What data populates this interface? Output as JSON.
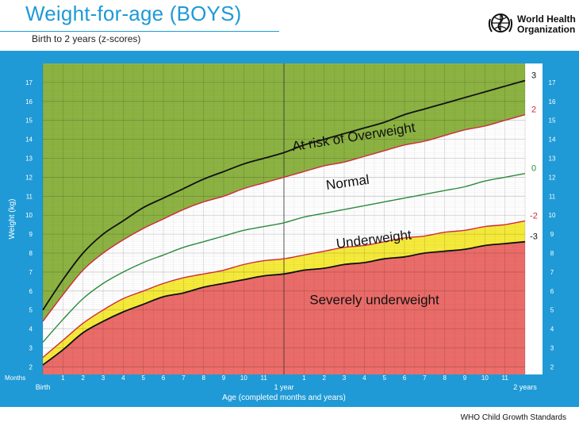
{
  "header": {
    "title": "Weight-for-age (BOYS)",
    "subtitle": "Birth to 2 years (z-scores)",
    "org_line1": "World Health",
    "org_line2": "Organization",
    "footer": "WHO Child Growth Standards"
  },
  "colors": {
    "brand_blue": "#1f9ad6",
    "overweight_zone": "#8db443",
    "normal_zone": "#ffffff",
    "underweight_zone": "#f7ec3b",
    "severe_zone": "#ec6d6a",
    "line_black": "#111111",
    "line_red": "#cf2a3b",
    "line_green": "#2a8a3c"
  },
  "chart_data": {
    "type": "line",
    "title": "Weight-for-age (BOYS)",
    "subtitle": "Birth to 2 years (z-scores)",
    "xlabel": "Age (completed months and years)",
    "ylabel": "Weight (kg)",
    "x_corner_label": "Months",
    "xlim": [
      0,
      24
    ],
    "ylim": [
      1.6,
      18
    ],
    "grid": true,
    "x": [
      0,
      1,
      2,
      3,
      4,
      5,
      6,
      7,
      8,
      9,
      10,
      11,
      12,
      13,
      14,
      15,
      16,
      17,
      18,
      19,
      20,
      21,
      22,
      23,
      24
    ],
    "x_tick_labels": [
      "Birth",
      "1",
      "2",
      "3",
      "4",
      "5",
      "6",
      "7",
      "8",
      "9",
      "10",
      "11",
      "1 year",
      "1",
      "2",
      "3",
      "4",
      "5",
      "6",
      "7",
      "8",
      "9",
      "10",
      "11",
      "2 years"
    ],
    "y_ticks": [
      2,
      3,
      4,
      5,
      6,
      7,
      8,
      9,
      10,
      11,
      12,
      13,
      14,
      15,
      16,
      17
    ],
    "series": [
      {
        "name": "3",
        "color": "#111111",
        "values": [
          5.0,
          6.6,
          8.0,
          9.0,
          9.7,
          10.4,
          10.9,
          11.4,
          11.9,
          12.3,
          12.7,
          13.0,
          13.3,
          13.7,
          14.0,
          14.3,
          14.6,
          14.9,
          15.3,
          15.6,
          15.9,
          16.2,
          16.5,
          16.8,
          17.1
        ]
      },
      {
        "name": "2",
        "color": "#cf2a3b",
        "values": [
          4.4,
          5.8,
          7.1,
          8.0,
          8.7,
          9.3,
          9.8,
          10.3,
          10.7,
          11.0,
          11.4,
          11.7,
          12.0,
          12.3,
          12.6,
          12.8,
          13.1,
          13.4,
          13.7,
          13.9,
          14.2,
          14.5,
          14.7,
          15.0,
          15.3
        ]
      },
      {
        "name": "0",
        "color": "#2a8a3c",
        "values": [
          3.3,
          4.5,
          5.6,
          6.4,
          7.0,
          7.5,
          7.9,
          8.3,
          8.6,
          8.9,
          9.2,
          9.4,
          9.6,
          9.9,
          10.1,
          10.3,
          10.5,
          10.7,
          10.9,
          11.1,
          11.3,
          11.5,
          11.8,
          12.0,
          12.2
        ]
      },
      {
        "name": "-2",
        "color": "#cf2a3b",
        "values": [
          2.5,
          3.4,
          4.3,
          5.0,
          5.6,
          6.0,
          6.4,
          6.7,
          6.9,
          7.1,
          7.4,
          7.6,
          7.7,
          7.9,
          8.1,
          8.3,
          8.4,
          8.6,
          8.8,
          8.9,
          9.1,
          9.2,
          9.4,
          9.5,
          9.7
        ]
      },
      {
        "name": "-3",
        "color": "#111111",
        "values": [
          2.1,
          2.9,
          3.8,
          4.4,
          4.9,
          5.3,
          5.7,
          5.9,
          6.2,
          6.4,
          6.6,
          6.8,
          6.9,
          7.1,
          7.2,
          7.4,
          7.5,
          7.7,
          7.8,
          8.0,
          8.1,
          8.2,
          8.4,
          8.5,
          8.6
        ]
      }
    ],
    "zones": [
      {
        "label": "At risk of Overweight",
        "x": 15.5,
        "y": 13.9,
        "angle": -9
      },
      {
        "label": "Normal",
        "x": 15.2,
        "y": 11.5,
        "angle": -8
      },
      {
        "label": "Underweight",
        "x": 16.5,
        "y": 8.5,
        "angle": -7
      },
      {
        "label": "Severely underweight",
        "x": 16.5,
        "y": 5.3,
        "angle": 0
      }
    ]
  }
}
